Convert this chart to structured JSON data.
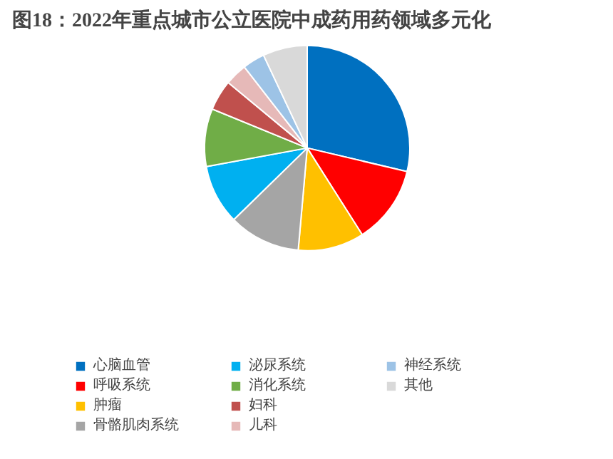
{
  "chart_data": {
    "type": "pie",
    "title": "图18：2022年重点城市公立医院中成药用药领域多元化",
    "categories": [
      "心脑血管",
      "呼吸系统",
      "肿瘤",
      "骨骼肌肉系统",
      "泌尿系统",
      "消化系统",
      "妇科",
      "儿科",
      "神经系统",
      "其他"
    ],
    "values": [
      28.7,
      12.3,
      10.4,
      11.3,
      9.4,
      9.1,
      4.8,
      3.5,
      3.5,
      7.0
    ],
    "colors": [
      "#0070c0",
      "#ff0000",
      "#ffc000",
      "#a5a5a5",
      "#00b0f0",
      "#70ad47",
      "#c0504d",
      "#e6b9b8",
      "#9dc3e6",
      "#d9d9d9"
    ],
    "legend": "bottom"
  }
}
